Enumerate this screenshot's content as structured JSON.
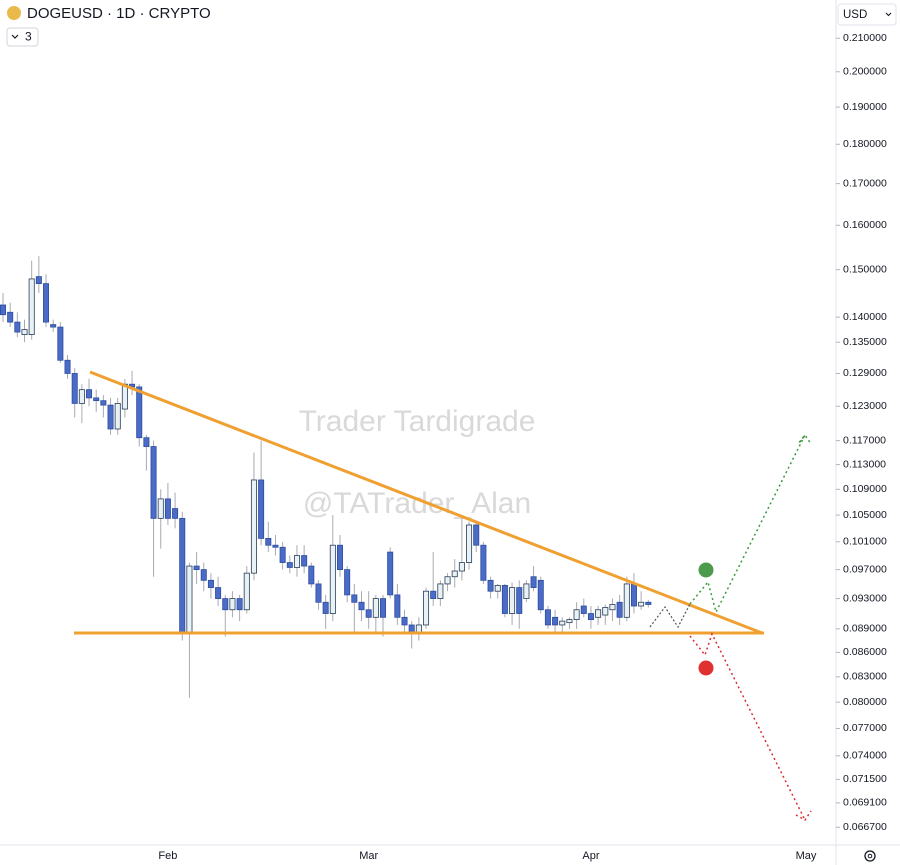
{
  "header": {
    "symbol": "DOGEUSD · 1D · CRYPTO",
    "indicator_count": 3,
    "currency": "USD"
  },
  "watermarks": [
    "Trader Tardigrade",
    "@TATrader_Alan"
  ],
  "chart_data": {
    "type": "candlestick",
    "log_scale": true,
    "up_color": "#e8f2f6",
    "down_color": "#4a6cc8",
    "categories": [
      null,
      null,
      null,
      null,
      null,
      null,
      null,
      null,
      null,
      null,
      null,
      null,
      null,
      null,
      null,
      null,
      null,
      null,
      null,
      null,
      null,
      null,
      null,
      "Feb",
      null,
      null,
      null,
      null,
      null,
      null,
      null,
      null,
      null,
      null,
      null,
      null,
      null,
      null,
      null,
      null,
      null,
      null,
      null,
      null,
      null,
      null,
      null,
      null,
      null,
      null,
      null,
      "Mar",
      null,
      null,
      null,
      null,
      null,
      null,
      null,
      null,
      null,
      null,
      null,
      null,
      null,
      null,
      null,
      null,
      null,
      null,
      null,
      null,
      null,
      null,
      null,
      null,
      null,
      null,
      null,
      null,
      null,
      null,
      "Apr",
      null,
      null,
      null,
      null,
      null,
      null,
      null,
      null,
      null,
      null,
      null,
      null,
      null,
      null,
      null,
      null,
      null,
      null,
      null,
      null,
      null,
      null,
      null,
      null,
      null,
      null,
      null,
      null,
      null,
      "May"
    ],
    "open": [
      0.1425,
      0.141,
      0.139,
      0.1365,
      0.1365,
      0.1485,
      0.147,
      0.1385,
      0.138,
      0.1315,
      0.129,
      0.1235,
      0.126,
      0.1245,
      0.124,
      0.1232,
      0.119,
      0.1225,
      0.127,
      0.1265,
      0.1175,
      0.116,
      0.1045,
      0.1075,
      0.106,
      0.1045,
      0.0885,
      0.0975,
      0.097,
      0.0955,
      0.0945,
      0.093,
      0.0915,
      0.093,
      0.0915,
      0.0965,
      0.1105,
      0.1015,
      0.1005,
      0.1002,
      0.098,
      0.0973,
      0.099,
      0.0975,
      0.095,
      0.0925,
      0.091,
      0.1005,
      0.097,
      0.0935,
      0.0925,
      0.0915,
      0.0905,
      0.093,
      0.0995,
      0.0935,
      0.0905,
      0.0895,
      0.0885,
      0.0895,
      0.094,
      0.093,
      0.095,
      0.096,
      0.0968,
      0.098,
      0.1035,
      0.1005,
      0.0955,
      0.094,
      0.0948,
      0.091,
      0.0945,
      0.093,
      0.096,
      0.0955,
      0.0915,
      0.0905,
      0.0895,
      0.0898,
      0.0902,
      0.092,
      0.091,
      0.0905,
      0.0908,
      0.0915,
      0.0925,
      0.0905,
      0.095,
      0.092,
      0.0925,
      null,
      null,
      null,
      null,
      null,
      null,
      null,
      null,
      null,
      null,
      null,
      null,
      null,
      null,
      null,
      null,
      null,
      null,
      null,
      null,
      null,
      null
    ],
    "high": [
      0.145,
      0.143,
      0.141,
      0.1395,
      0.152,
      0.153,
      0.149,
      0.1395,
      0.139,
      0.1325,
      0.13,
      0.127,
      0.128,
      0.126,
      0.125,
      0.1245,
      0.1245,
      0.128,
      0.1295,
      0.127,
      0.118,
      0.117,
      0.109,
      0.11,
      0.1085,
      0.1055,
      0.098,
      0.0995,
      0.098,
      0.0965,
      0.096,
      0.0935,
      0.094,
      0.0935,
      0.0975,
      0.115,
      0.117,
      0.104,
      0.102,
      0.101,
      0.099,
      0.1005,
      0.1005,
      0.098,
      0.0955,
      0.0935,
      0.105,
      0.102,
      0.0975,
      0.095,
      0.094,
      0.094,
      0.0935,
      0.0935,
      0.1002,
      0.095,
      0.0915,
      0.09,
      0.0905,
      0.0945,
      0.0995,
      0.0955,
      0.0965,
      0.0985,
      0.1045,
      0.104,
      0.104,
      0.101,
      0.096,
      0.095,
      0.095,
      0.0952,
      0.0955,
      0.0955,
      0.0975,
      0.096,
      0.092,
      0.0915,
      0.0905,
      0.0905,
      0.0925,
      0.093,
      0.092,
      0.092,
      0.0922,
      0.093,
      0.0935,
      0.096,
      0.0965,
      0.094,
      0.0928,
      null,
      null,
      null,
      null,
      null,
      null,
      null,
      null,
      null,
      null,
      null,
      null,
      null,
      null,
      null,
      null,
      null,
      null,
      null,
      null,
      null,
      null
    ],
    "low": [
      0.139,
      0.138,
      0.136,
      0.135,
      0.1355,
      0.145,
      0.138,
      0.137,
      0.131,
      0.128,
      0.121,
      0.12,
      0.123,
      0.122,
      0.121,
      0.118,
      0.118,
      0.121,
      0.125,
      0.116,
      0.112,
      0.096,
      0.1,
      0.1035,
      0.103,
      0.0875,
      0.0805,
      0.095,
      0.094,
      0.093,
      0.092,
      0.088,
      0.0905,
      0.09,
      0.091,
      0.0955,
      0.1005,
      0.0995,
      0.099,
      0.097,
      0.0965,
      0.096,
      0.0965,
      0.0945,
      0.0915,
      0.089,
      0.09,
      0.096,
      0.0925,
      0.0885,
      0.09,
      0.089,
      0.0885,
      0.088,
      0.093,
      0.0895,
      0.0885,
      0.0865,
      0.0875,
      0.089,
      0.092,
      0.092,
      0.094,
      0.0945,
      0.0955,
      0.097,
      0.0995,
      0.095,
      0.093,
      0.093,
      0.0905,
      0.0895,
      0.089,
      0.0925,
      0.094,
      0.091,
      0.089,
      0.0885,
      0.0885,
      0.089,
      0.089,
      0.0905,
      0.089,
      0.0895,
      0.0895,
      0.09,
      0.0895,
      0.09,
      0.091,
      0.0915,
      0.0918,
      null,
      null,
      null,
      null,
      null,
      null,
      null,
      null,
      null,
      null,
      null,
      null,
      null,
      null,
      null,
      null,
      null,
      null,
      null,
      null,
      null,
      null
    ],
    "close": [
      0.1405,
      0.139,
      0.137,
      0.1375,
      0.148,
      0.147,
      0.139,
      0.138,
      0.1315,
      0.129,
      0.1235,
      0.126,
      0.1245,
      0.124,
      0.1232,
      0.119,
      0.1235,
      0.127,
      0.1265,
      0.1175,
      0.116,
      0.1045,
      0.1075,
      0.1045,
      0.1045,
      0.0885,
      0.0975,
      0.097,
      0.0955,
      0.0945,
      0.093,
      0.0915,
      0.093,
      0.0915,
      0.0965,
      0.1105,
      0.1015,
      0.1005,
      0.1002,
      0.098,
      0.0973,
      0.099,
      0.0975,
      0.095,
      0.0925,
      0.091,
      0.1005,
      0.097,
      0.0935,
      0.0925,
      0.0915,
      0.0905,
      0.093,
      0.0905,
      0.0935,
      0.0905,
      0.0895,
      0.0885,
      0.0895,
      0.094,
      0.093,
      0.095,
      0.096,
      0.0968,
      0.098,
      0.1035,
      0.1005,
      0.0955,
      0.094,
      0.0948,
      0.091,
      0.0945,
      0.091,
      0.095,
      0.0945,
      0.0915,
      0.0895,
      0.0895,
      0.09,
      0.0902,
      0.0915,
      0.091,
      0.0902,
      0.0915,
      0.0918,
      0.0922,
      0.0905,
      0.095,
      0.092,
      0.0925,
      0.0922,
      null,
      null,
      null,
      null,
      null,
      null,
      null,
      null,
      null,
      null,
      null,
      null,
      null,
      null,
      null,
      null,
      null,
      null,
      null,
      null,
      null,
      null
    ],
    "ylim": [
      0.065,
      0.222
    ],
    "yticks": [
      {
        "value": 0.21,
        "label": "0.210000"
      },
      {
        "value": 0.2,
        "label": "0.200000"
      },
      {
        "value": 0.19,
        "label": "0.190000"
      },
      {
        "value": 0.18,
        "label": "0.180000"
      },
      {
        "value": 0.17,
        "label": "0.170000"
      },
      {
        "value": 0.16,
        "label": "0.160000"
      },
      {
        "value": 0.15,
        "label": "0.150000"
      },
      {
        "value": 0.14,
        "label": "0.140000"
      },
      {
        "value": 0.135,
        "label": "0.135000"
      },
      {
        "value": 0.129,
        "label": "0.129000"
      },
      {
        "value": 0.123,
        "label": "0.123000"
      },
      {
        "value": 0.117,
        "label": "0.117000"
      },
      {
        "value": 0.113,
        "label": "0.113000"
      },
      {
        "value": 0.109,
        "label": "0.109000"
      },
      {
        "value": 0.105,
        "label": "0.105000"
      },
      {
        "value": 0.101,
        "label": "0.101000"
      },
      {
        "value": 0.097,
        "label": "0.097000"
      },
      {
        "value": 0.093,
        "label": "0.093000"
      },
      {
        "value": 0.089,
        "label": "0.089000"
      },
      {
        "value": 0.086,
        "label": "0.086000"
      },
      {
        "value": 0.083,
        "label": "0.083000"
      },
      {
        "value": 0.08,
        "label": "0.080000"
      },
      {
        "value": 0.077,
        "label": "0.077000"
      },
      {
        "value": 0.074,
        "label": "0.074000"
      },
      {
        "value": 0.0715,
        "label": "0.071500"
      },
      {
        "value": 0.0691,
        "label": "0.069100"
      },
      {
        "value": 0.0667,
        "label": "0.066700"
      }
    ]
  }
}
